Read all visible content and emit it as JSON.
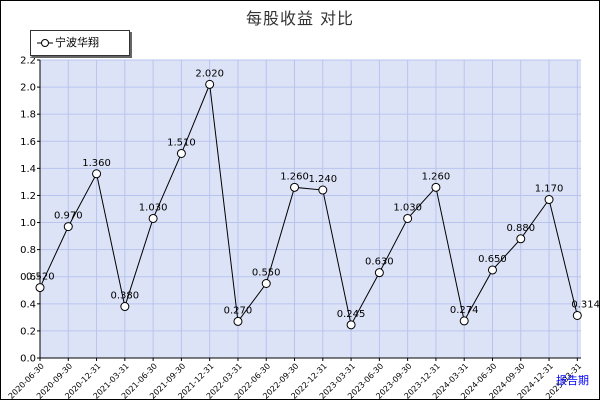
{
  "chart_data": {
    "type": "line",
    "title": "每股收益  对比",
    "xlabel": "报告期",
    "ylabel": "",
    "ylim": [
      0,
      2.2
    ],
    "ytick_step": 0.2,
    "grid": true,
    "legend_position": "top-left",
    "colors": {
      "plot_background": "#dde3f7",
      "grid": "#b8c4ee",
      "line": "#000000",
      "marker_fill": "#ffffff",
      "xlabel": "#0000ff"
    },
    "categories": [
      "2020-06-30",
      "2020-09-30",
      "2020-12-31",
      "2021-03-31",
      "2021-06-30",
      "2021-09-30",
      "2021-12-31",
      "2022-03-31",
      "2022-06-30",
      "2022-09-30",
      "2022-12-31",
      "2023-03-31",
      "2023-06-30",
      "2023-09-30",
      "2023-12-31",
      "2024-03-31",
      "2024-06-30",
      "2024-09-30",
      "2024-12-31",
      "2025-03-31"
    ],
    "series": [
      {
        "name": "宁波华翔",
        "values": [
          0.52,
          0.97,
          1.36,
          0.38,
          1.03,
          1.51,
          2.02,
          0.27,
          0.55,
          1.26,
          1.24,
          0.245,
          0.63,
          1.03,
          1.26,
          0.274,
          0.65,
          0.88,
          1.17,
          0.314
        ],
        "labels": [
          "0.520",
          "0.970",
          "1.360",
          "0.380",
          "1.030",
          "1.510",
          "2.020",
          "0.270",
          "0.550",
          "1.260",
          "1.240",
          "0.245",
          "0.630",
          "1.030",
          "1.260",
          "0.274",
          "0.650",
          "0.880",
          "1.170",
          "0.314"
        ]
      }
    ]
  }
}
